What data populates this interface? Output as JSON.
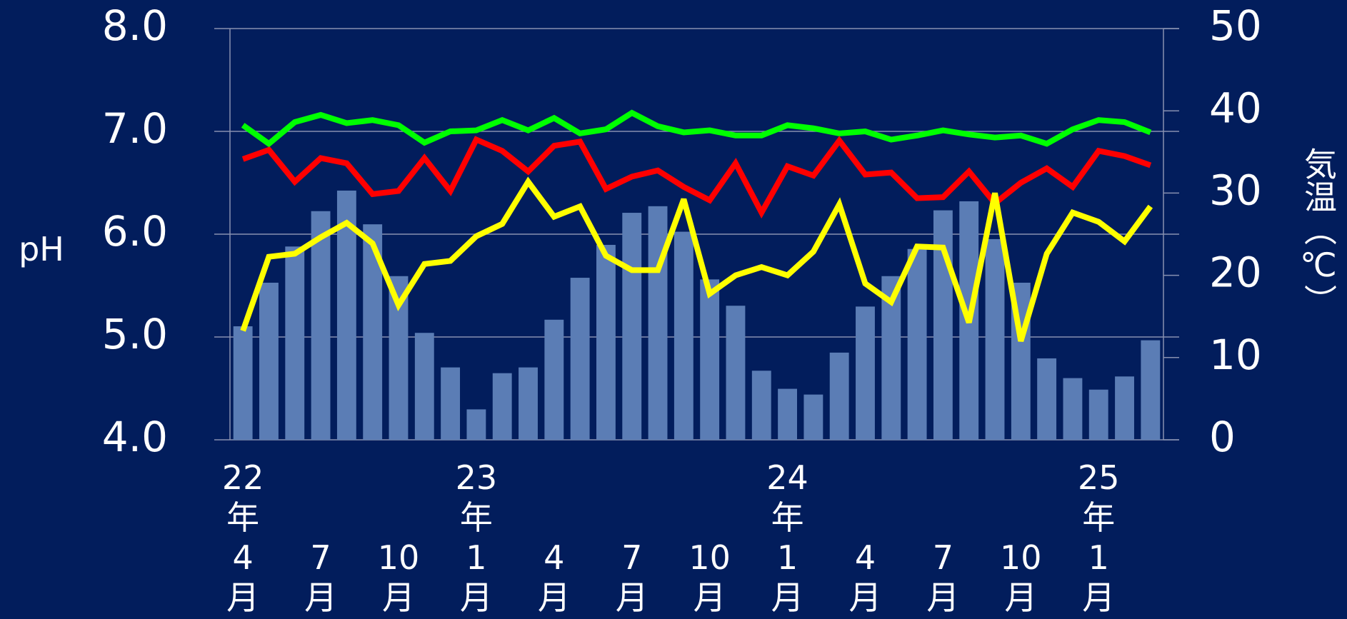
{
  "chart_data": {
    "type": "combo",
    "ylabel": "pH",
    "y2label": "気温（℃）",
    "categories": [
      "22年4月",
      null,
      null,
      "7月",
      null,
      null,
      "10月",
      null,
      null,
      "23年1月",
      null,
      null,
      "4月",
      null,
      null,
      "7月",
      null,
      null,
      "10月",
      null,
      null,
      "24年1月",
      null,
      null,
      "4月",
      null,
      null,
      "7月",
      null,
      null,
      "10月",
      null,
      null,
      "25年1月",
      null,
      null
    ],
    "ylim": [
      4.0,
      8.0
    ],
    "yticks": [
      {
        "value": 4.0,
        "label": "4.0"
      },
      {
        "value": 5.0,
        "label": "5.0"
      },
      {
        "value": 6.0,
        "label": "6.0"
      },
      {
        "value": 7.0,
        "label": "7.0"
      },
      {
        "value": 8.0,
        "label": "8.0"
      }
    ],
    "y2lim": [
      0,
      50
    ],
    "y2ticks": [
      0,
      10,
      20,
      30,
      40,
      50
    ],
    "grid": true,
    "series": [
      {
        "type": "bar",
        "axis": "y2",
        "color": "#5b7db5",
        "values": [
          13.8,
          19.1,
          23.5,
          27.8,
          30.3,
          26.2,
          19.9,
          13.0,
          8.8,
          3.7,
          8.1,
          8.8,
          14.6,
          19.7,
          23.7,
          27.6,
          28.4,
          25.3,
          19.5,
          16.3,
          8.4,
          6.2,
          5.5,
          10.6,
          16.2,
          19.9,
          23.2,
          27.9,
          29.0,
          24.4,
          19.1,
          9.9,
          7.5,
          6.1,
          7.7,
          12.1
        ]
      },
      {
        "type": "line",
        "color": "#00ff00",
        "values": [
          7.06,
          6.88,
          7.09,
          7.16,
          7.08,
          7.11,
          7.06,
          6.89,
          7.0,
          7.01,
          7.11,
          7.01,
          7.13,
          6.98,
          7.02,
          7.18,
          7.05,
          6.99,
          7.01,
          6.96,
          6.96,
          7.06,
          7.03,
          6.98,
          7.0,
          6.92,
          6.96,
          7.01,
          6.97,
          6.94,
          6.96,
          6.88,
          7.02,
          7.11,
          7.09,
          6.99
        ]
      },
      {
        "type": "line",
        "color": "#ff0000",
        "values": [
          6.73,
          6.82,
          6.51,
          6.74,
          6.69,
          6.39,
          6.42,
          6.74,
          6.42,
          6.92,
          6.81,
          6.61,
          6.86,
          6.9,
          6.44,
          6.56,
          6.62,
          6.46,
          6.33,
          6.69,
          6.21,
          6.66,
          6.57,
          6.91,
          6.58,
          6.6,
          6.35,
          6.36,
          6.61,
          6.3,
          6.5,
          6.64,
          6.46,
          6.81,
          6.76,
          6.67
        ]
      },
      {
        "type": "line",
        "color": "#ffff00",
        "values": [
          5.06,
          5.78,
          5.81,
          5.97,
          6.11,
          5.91,
          5.31,
          5.71,
          5.74,
          5.98,
          6.1,
          6.51,
          6.17,
          6.27,
          5.79,
          5.65,
          5.65,
          6.34,
          5.42,
          5.6,
          5.68,
          5.6,
          5.83,
          6.29,
          5.52,
          5.34,
          5.88,
          5.87,
          5.14,
          6.4,
          4.96,
          5.81,
          6.21,
          6.12,
          5.93,
          6.27
        ]
      }
    ]
  }
}
